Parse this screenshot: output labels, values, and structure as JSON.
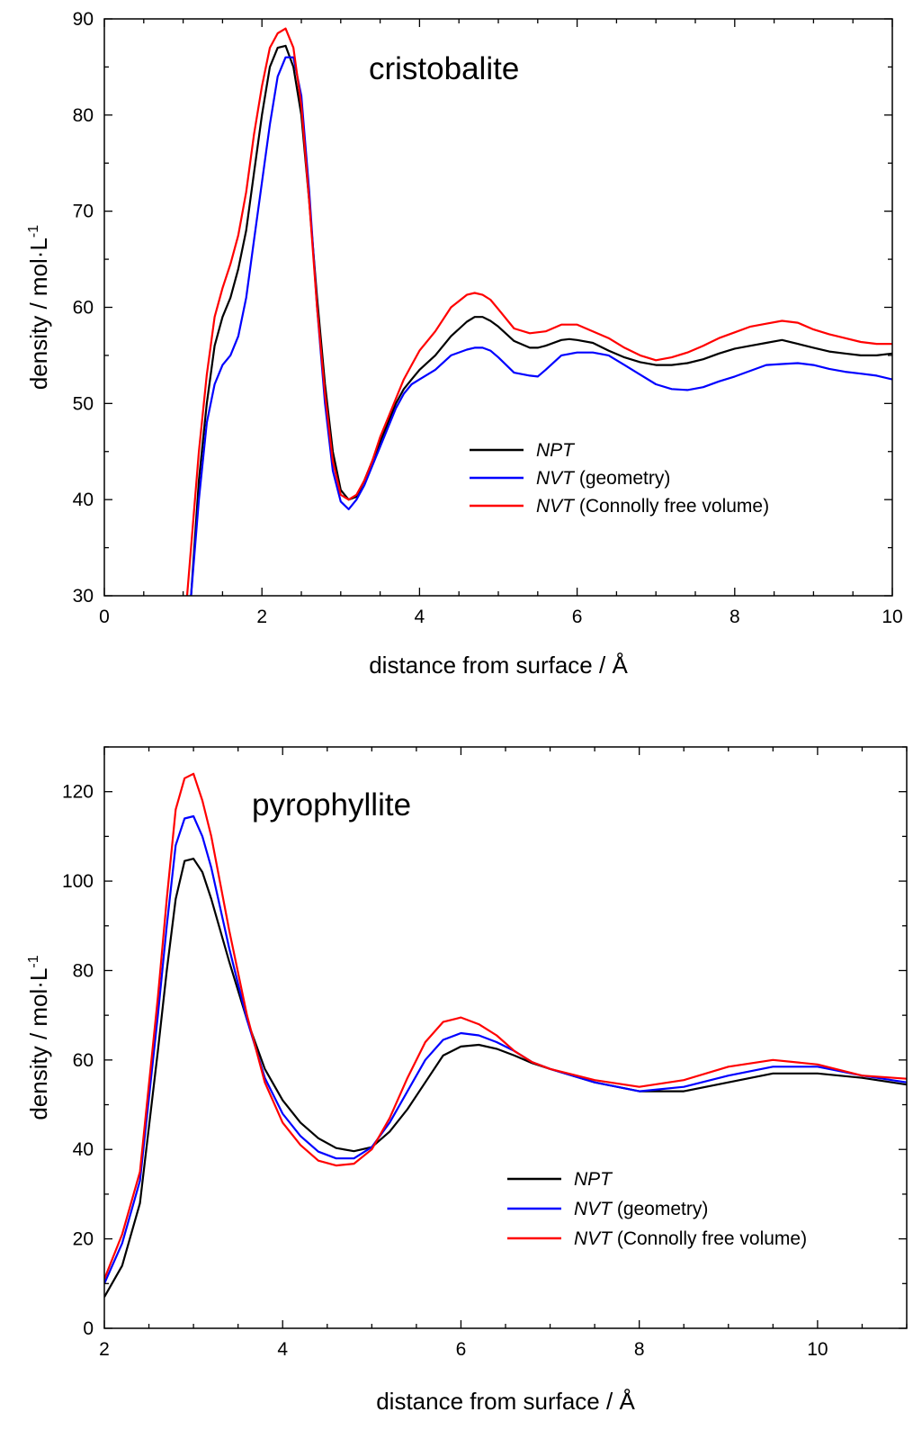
{
  "chart_data": [
    {
      "type": "line",
      "title": "cristobalite",
      "xlabel": "distance from surface / Å",
      "ylabel": "density / mol·L",
      "ylabel_sup": "-1",
      "xlim": [
        0,
        10
      ],
      "ylim": [
        30,
        90
      ],
      "xticks": [
        0,
        2,
        4,
        6,
        8,
        10
      ],
      "yticks": [
        30,
        40,
        50,
        60,
        70,
        80,
        90
      ],
      "grid": false,
      "legend_position": "lower-right",
      "series": [
        {
          "name_italic": "NPT",
          "name_rest": "",
          "color": "#000000",
          "x": [
            1.1,
            1.2,
            1.3,
            1.4,
            1.5,
            1.6,
            1.7,
            1.8,
            1.9,
            2.0,
            2.1,
            2.2,
            2.3,
            2.4,
            2.5,
            2.6,
            2.7,
            2.8,
            2.9,
            3.0,
            3.1,
            3.2,
            3.3,
            3.4,
            3.5,
            3.6,
            3.7,
            3.8,
            3.9,
            4.0,
            4.2,
            4.4,
            4.6,
            4.7,
            4.8,
            4.9,
            5.0,
            5.2,
            5.4,
            5.5,
            5.6,
            5.8,
            5.9,
            6.0,
            6.2,
            6.4,
            6.6,
            6.8,
            7.0,
            7.2,
            7.4,
            7.6,
            7.8,
            8.0,
            8.2,
            8.4,
            8.6,
            8.8,
            9.0,
            9.2,
            9.4,
            9.6,
            9.8,
            10.0
          ],
          "y": [
            30,
            42,
            50,
            56,
            59,
            61,
            64,
            68,
            74,
            80,
            85,
            87,
            87.2,
            85,
            80,
            71,
            61,
            52,
            45,
            41,
            40,
            40.3,
            42,
            44,
            46,
            48,
            50,
            51.5,
            52.5,
            53.5,
            55,
            57,
            58.5,
            59,
            59,
            58.6,
            58,
            56.5,
            55.8,
            55.8,
            56,
            56.6,
            56.7,
            56.6,
            56.3,
            55.5,
            54.8,
            54.3,
            54,
            54,
            54.2,
            54.6,
            55.2,
            55.7,
            56,
            56.3,
            56.6,
            56.2,
            55.8,
            55.4,
            55.2,
            55,
            55,
            55.2
          ]
        },
        {
          "name_italic": "NVT",
          "name_rest": " (geometry)",
          "color": "#0000ff",
          "x": [
            1.1,
            1.2,
            1.3,
            1.4,
            1.5,
            1.6,
            1.7,
            1.8,
            1.9,
            2.0,
            2.1,
            2.2,
            2.3,
            2.4,
            2.5,
            2.6,
            2.7,
            2.8,
            2.9,
            3.0,
            3.1,
            3.2,
            3.3,
            3.4,
            3.5,
            3.6,
            3.7,
            3.8,
            3.9,
            4.0,
            4.2,
            4.4,
            4.6,
            4.7,
            4.8,
            4.9,
            5.0,
            5.2,
            5.4,
            5.5,
            5.6,
            5.8,
            6.0,
            6.2,
            6.4,
            6.6,
            6.8,
            7.0,
            7.2,
            7.4,
            7.6,
            7.8,
            8.0,
            8.2,
            8.4,
            8.6,
            8.8,
            9.0,
            9.2,
            9.4,
            9.6,
            9.8,
            10.0
          ],
          "y": [
            30,
            40,
            48,
            52,
            54,
            55,
            57,
            61,
            67,
            73,
            79,
            84,
            86,
            86,
            82,
            72,
            60,
            50,
            43,
            39.8,
            39,
            40,
            41.5,
            43.5,
            45.5,
            47.5,
            49.5,
            51,
            52,
            52.5,
            53.5,
            55,
            55.6,
            55.8,
            55.8,
            55.5,
            54.8,
            53.2,
            52.9,
            52.8,
            53.5,
            55,
            55.3,
            55.3,
            55,
            54,
            53,
            52,
            51.5,
            51.4,
            51.7,
            52.3,
            52.8,
            53.4,
            54,
            54.1,
            54.2,
            54,
            53.6,
            53.3,
            53.1,
            52.9,
            52.5
          ]
        },
        {
          "name_italic": "NVT",
          "name_rest": " (Connolly free volume)",
          "color": "#ff0000",
          "x": [
            1.05,
            1.2,
            1.3,
            1.4,
            1.5,
            1.6,
            1.7,
            1.8,
            1.9,
            2.0,
            2.1,
            2.2,
            2.3,
            2.4,
            2.5,
            2.6,
            2.7,
            2.8,
            2.9,
            3.0,
            3.1,
            3.2,
            3.3,
            3.4,
            3.5,
            3.6,
            3.7,
            3.8,
            3.9,
            4.0,
            4.2,
            4.4,
            4.6,
            4.7,
            4.8,
            4.9,
            5.0,
            5.2,
            5.4,
            5.6,
            5.8,
            6.0,
            6.2,
            6.4,
            6.6,
            6.8,
            7.0,
            7.2,
            7.4,
            7.6,
            7.8,
            8.0,
            8.2,
            8.4,
            8.6,
            8.8,
            9.0,
            9.2,
            9.4,
            9.6,
            9.8,
            10.0
          ],
          "y": [
            30,
            45,
            53,
            59,
            62,
            64.5,
            67.5,
            72,
            78,
            83,
            87,
            88.5,
            89,
            87,
            81,
            71,
            60,
            51,
            44,
            40.5,
            40,
            40.5,
            42,
            44,
            46.5,
            48.5,
            50.5,
            52.5,
            54,
            55.5,
            57.5,
            60,
            61.3,
            61.5,
            61.3,
            60.8,
            59.8,
            57.8,
            57.3,
            57.5,
            58.2,
            58.2,
            57.5,
            56.8,
            55.8,
            55,
            54.5,
            54.8,
            55.3,
            56,
            56.8,
            57.4,
            58,
            58.3,
            58.6,
            58.4,
            57.7,
            57.2,
            56.8,
            56.4,
            56.2,
            56.2
          ]
        }
      ]
    },
    {
      "type": "line",
      "title": "pyrophyllite",
      "xlabel": "distance from surface / Å",
      "ylabel": "density / mol·L",
      "ylabel_sup": "-1",
      "xlim": [
        2,
        11
      ],
      "ylim": [
        0,
        130
      ],
      "xticks": [
        2,
        4,
        6,
        8,
        10
      ],
      "yticks": [
        0,
        20,
        40,
        60,
        80,
        100,
        120
      ],
      "grid": false,
      "legend_position": "lower-right",
      "series": [
        {
          "name_italic": "NPT",
          "name_rest": "",
          "color": "#000000",
          "x": [
            2.0,
            2.2,
            2.4,
            2.6,
            2.7,
            2.8,
            2.9,
            3.0,
            3.1,
            3.2,
            3.4,
            3.6,
            3.8,
            4.0,
            4.2,
            4.4,
            4.6,
            4.8,
            5.0,
            5.2,
            5.4,
            5.6,
            5.8,
            6.0,
            6.2,
            6.4,
            6.6,
            6.8,
            7.0,
            7.5,
            8.0,
            8.5,
            9.0,
            9.5,
            10.0,
            10.5,
            11.0
          ],
          "y": [
            7,
            14,
            28,
            62,
            80,
            96,
            104.5,
            105,
            102,
            96,
            82,
            69,
            58,
            51,
            46,
            42.5,
            40.3,
            39.6,
            40.5,
            44,
            49,
            55,
            61,
            63,
            63.4,
            62.5,
            61,
            59.3,
            58,
            55,
            53,
            53,
            55,
            57,
            57,
            56,
            54.5
          ]
        },
        {
          "name_italic": "NVT",
          "name_rest": " (geometry)",
          "color": "#0000ff",
          "x": [
            2.0,
            2.2,
            2.4,
            2.6,
            2.7,
            2.8,
            2.9,
            3.0,
            3.1,
            3.2,
            3.4,
            3.6,
            3.8,
            4.0,
            4.2,
            4.4,
            4.6,
            4.8,
            5.0,
            5.2,
            5.4,
            5.6,
            5.8,
            6.0,
            6.2,
            6.4,
            6.6,
            6.8,
            7.0,
            7.5,
            8.0,
            8.5,
            9.0,
            9.5,
            10.0,
            10.5,
            11.0
          ],
          "y": [
            10,
            19,
            33,
            70,
            90,
            108,
            114,
            114.5,
            110,
            103,
            85,
            69,
            56,
            48,
            43,
            39.5,
            38,
            38,
            40.5,
            46,
            53,
            60,
            64.5,
            66,
            65.5,
            64,
            62,
            59.5,
            58,
            55,
            53,
            54,
            56.5,
            58.5,
            58.5,
            56.5,
            55
          ]
        },
        {
          "name_italic": "NVT",
          "name_rest": " (Connolly free volume)",
          "color": "#ff0000",
          "x": [
            2.0,
            2.2,
            2.4,
            2.6,
            2.7,
            2.8,
            2.9,
            3.0,
            3.1,
            3.2,
            3.4,
            3.6,
            3.8,
            4.0,
            4.2,
            4.4,
            4.6,
            4.8,
            5.0,
            5.2,
            5.4,
            5.6,
            5.8,
            6.0,
            6.2,
            6.4,
            6.6,
            6.8,
            7.0,
            7.5,
            8.0,
            8.5,
            9.0,
            9.5,
            10.0,
            10.5,
            11.0
          ],
          "y": [
            11,
            21,
            35,
            74,
            96,
            116,
            123,
            124,
            118,
            110,
            89,
            70,
            55,
            46,
            41,
            37.5,
            36.4,
            36.8,
            40,
            47,
            56,
            64,
            68.5,
            69.5,
            68,
            65.5,
            62,
            59.5,
            58,
            55.5,
            54,
            55.5,
            58.5,
            60,
            59,
            56.5,
            55.8
          ]
        }
      ]
    }
  ]
}
